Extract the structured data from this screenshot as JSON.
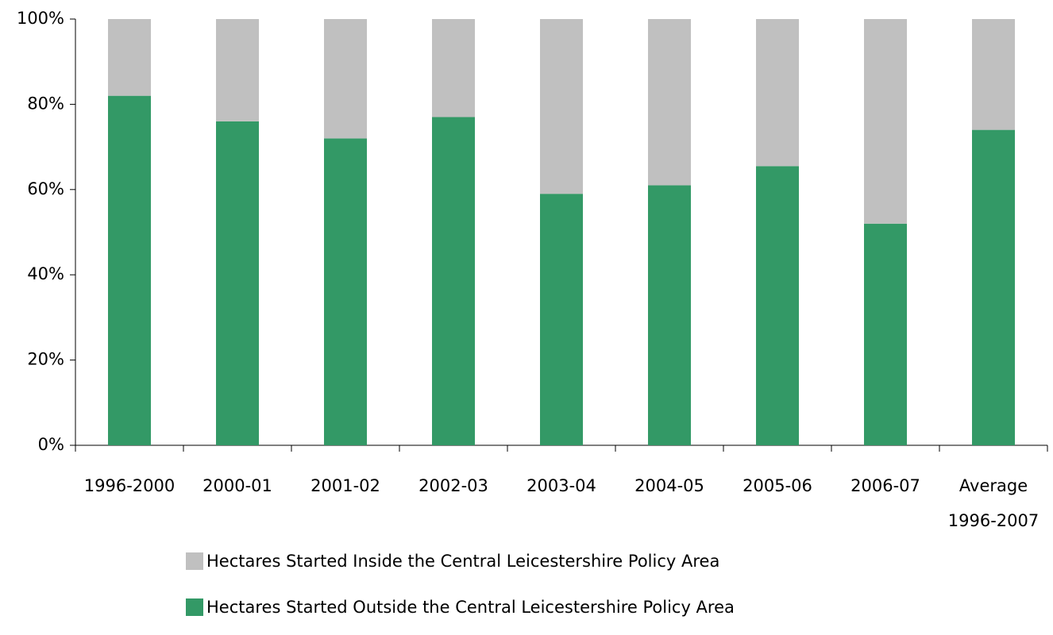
{
  "chart_data": {
    "type": "stacked_bar",
    "categories": [
      "1996-2000",
      "2000-01",
      "2001-02",
      "2002-03",
      "2003-04",
      "2004-05",
      "2005-06",
      "2006-07",
      "Average 1996-2007"
    ],
    "series": [
      {
        "name": "Hectares Started Outside the Central Leicestershire Policy Area",
        "color": "#339966",
        "values": [
          82,
          76,
          72,
          77,
          59,
          61,
          65.5,
          52,
          74
        ]
      },
      {
        "name": "Hectares Started Inside the Central Leicestershire Policy Area",
        "color": "#c0c0c0",
        "values": [
          18,
          24,
          28,
          23,
          41,
          39,
          34.5,
          48,
          26
        ]
      }
    ],
    "ylim": [
      0,
      100
    ],
    "yticks": [
      {
        "value": 0,
        "label": "0%"
      },
      {
        "value": 20,
        "label": "20%"
      },
      {
        "value": 40,
        "label": "40%"
      },
      {
        "value": 60,
        "label": "60%"
      },
      {
        "value": 80,
        "label": "80%"
      },
      {
        "value": 100,
        "label": "100%"
      }
    ],
    "grid": false,
    "legend": "bottom"
  }
}
